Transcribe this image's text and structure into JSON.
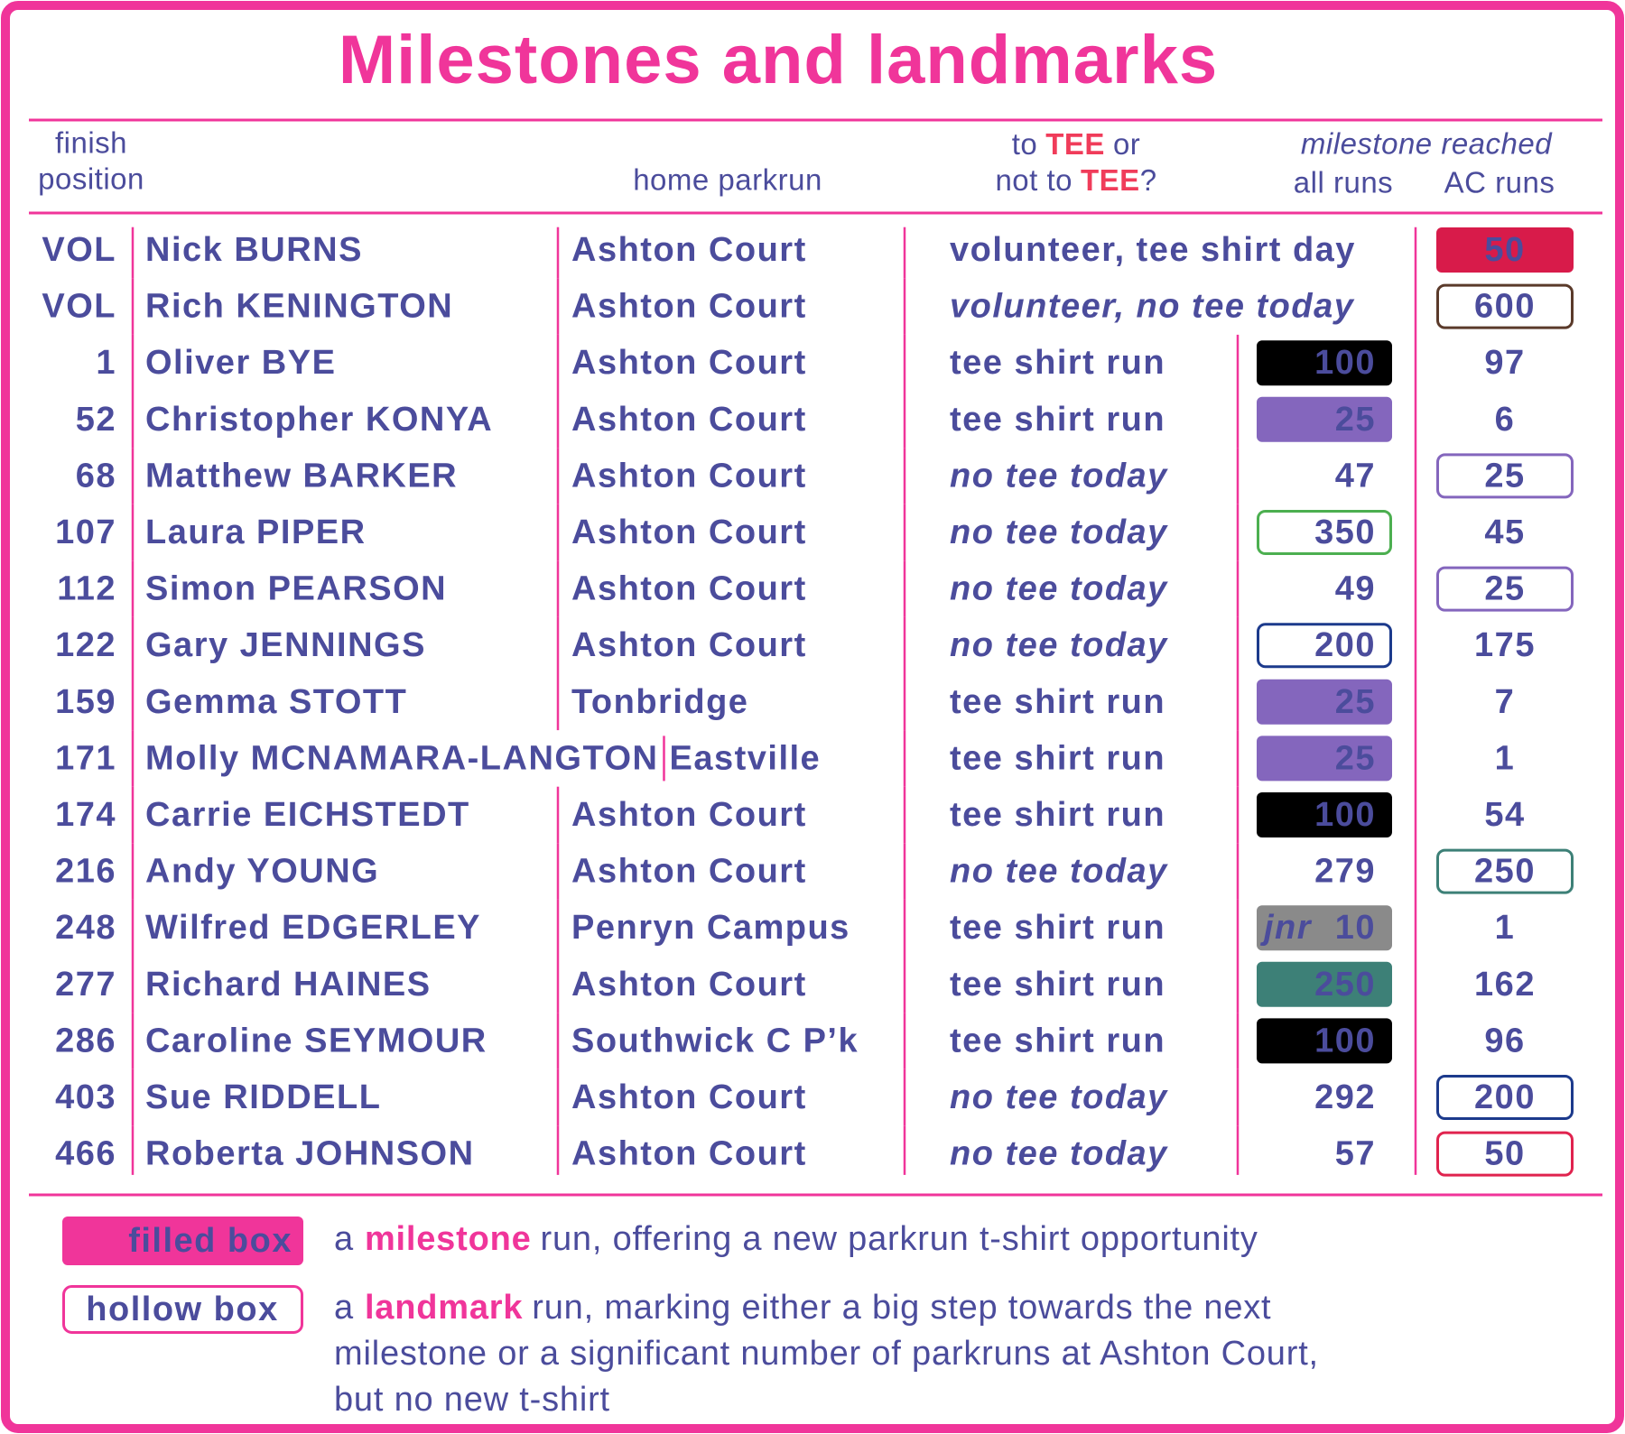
{
  "title": "Milestones and landmarks",
  "header": {
    "finish_position": [
      "finish",
      "position"
    ],
    "home_parkrun": "home parkrun",
    "tee_question": [
      [
        "to",
        "TEE",
        "or"
      ],
      [
        "not to",
        "TEE",
        "?"
      ]
    ],
    "milestone_reached": "milestone reached",
    "all_runs": "all runs",
    "ac_runs": "AC runs"
  },
  "rows": [
    {
      "position": "VOL",
      "position_color": "#d3123c",
      "name": "Nick BURNS",
      "home": "Ashton Court",
      "status": {
        "text": "volunteer, tee shirt day",
        "color": "#d3123c",
        "italic": false
      },
      "ac_runs": {
        "value": 50,
        "box": "filled",
        "color": "#d81b4a"
      }
    },
    {
      "position": "VOL",
      "position_color": "#d3123c",
      "name": "Rich KENINGTON",
      "home": "Ashton Court",
      "status": {
        "text": "volunteer, no tee today",
        "color": "#5a3a2a",
        "italic": true
      },
      "ac_runs": {
        "value": 600,
        "box": "hollow",
        "color": "#5a3a2a"
      }
    },
    {
      "position": 1,
      "name": "Oliver BYE",
      "home": "Ashton Court",
      "status": {
        "text": "tee shirt run",
        "color": "#000000",
        "italic": false
      },
      "all_runs": {
        "value": 100,
        "box": "filled",
        "color": "#000000"
      },
      "ac_runs": {
        "value": 97
      }
    },
    {
      "position": 52,
      "name": "Christopher KONYA",
      "home": "Ashton Court",
      "status": {
        "text": "tee shirt run",
        "color": "#8466bd",
        "italic": false
      },
      "all_runs": {
        "value": 25,
        "box": "filled",
        "color": "#8466bd"
      },
      "ac_runs": {
        "value": 6
      }
    },
    {
      "position": 68,
      "name": "Matthew BARKER",
      "home": "Ashton Court",
      "status": {
        "text": "no tee today",
        "color": "#8466bd",
        "italic": true
      },
      "all_runs": {
        "value": 47
      },
      "ac_runs": {
        "value": 25,
        "box": "hollow",
        "color": "#8466bd"
      }
    },
    {
      "position": 107,
      "name": "Laura PIPER",
      "home": "Ashton Court",
      "status": {
        "text": "no tee today",
        "color": "#4caf50",
        "italic": true
      },
      "all_runs": {
        "value": 350,
        "box": "hollow",
        "color": "#4caf50"
      },
      "ac_runs": {
        "value": 45
      }
    },
    {
      "position": 112,
      "name": "Simon PEARSON",
      "home": "Ashton Court",
      "status": {
        "text": "no tee today",
        "color": "#8466bd",
        "italic": true
      },
      "all_runs": {
        "value": 49
      },
      "ac_runs": {
        "value": 25,
        "box": "hollow",
        "color": "#8466bd"
      }
    },
    {
      "position": 122,
      "name": "Gary JENNINGS",
      "home": "Ashton Court",
      "status": {
        "text": "no tee today",
        "color": "#1c3a8c",
        "italic": true
      },
      "all_runs": {
        "value": 200,
        "box": "hollow",
        "color": "#1c3a8c"
      },
      "ac_runs": {
        "value": 175
      }
    },
    {
      "position": 159,
      "name": "Gemma STOTT",
      "home": "Tonbridge",
      "status": {
        "text": "tee shirt run",
        "color": "#8466bd",
        "italic": false
      },
      "all_runs": {
        "value": 25,
        "box": "filled",
        "color": "#8466bd"
      },
      "ac_runs": {
        "value": 7
      }
    },
    {
      "position": 171,
      "name": "Molly MCNAMARA-LANGTON",
      "home": "Eastville",
      "status": {
        "text": "tee shirt run",
        "color": "#8466bd",
        "italic": false
      },
      "all_runs": {
        "value": 25,
        "box": "filled",
        "color": "#8466bd"
      },
      "ac_runs": {
        "value": 1
      }
    },
    {
      "position": 174,
      "name": "Carrie EICHSTEDT",
      "home": "Ashton Court",
      "status": {
        "text": "tee shirt run",
        "color": "#000000",
        "italic": false
      },
      "all_runs": {
        "value": 100,
        "box": "filled",
        "color": "#000000"
      },
      "ac_runs": {
        "value": 54
      }
    },
    {
      "position": 216,
      "name": "Andy YOUNG",
      "home": "Ashton Court",
      "status": {
        "text": "no tee today",
        "color": "#3d8077",
        "italic": true
      },
      "all_runs": {
        "value": 279
      },
      "ac_runs": {
        "value": 250,
        "box": "hollow",
        "color": "#3d8077"
      }
    },
    {
      "position": 248,
      "name": "Wilfred EDGERLEY",
      "home": "Penryn Campus",
      "status": {
        "text": "tee shirt run",
        "color": "#8a8a8a",
        "italic": false
      },
      "all_runs": {
        "prefix": "jnr",
        "value": 10,
        "box": "filled",
        "color": "#8a8a8a"
      },
      "ac_runs": {
        "value": 1
      }
    },
    {
      "position": 277,
      "name": "Richard HAINES",
      "home": "Ashton Court",
      "status": {
        "text": "tee shirt run",
        "color": "#3d8077",
        "italic": false
      },
      "all_runs": {
        "value": 250,
        "box": "filled",
        "color": "#3d8077"
      },
      "ac_runs": {
        "value": 162
      }
    },
    {
      "position": 286,
      "name": "Caroline SEYMOUR",
      "home": "Southwick C P’k",
      "status": {
        "text": "tee shirt run",
        "color": "#000000",
        "italic": false
      },
      "all_runs": {
        "value": 100,
        "box": "filled",
        "color": "#000000"
      },
      "ac_runs": {
        "value": 96
      }
    },
    {
      "position": 403,
      "name": "Sue RIDDELL",
      "home": "Ashton Court",
      "status": {
        "text": "no tee today",
        "color": "#1c3a8c",
        "italic": true
      },
      "all_runs": {
        "value": 292
      },
      "ac_runs": {
        "value": 200,
        "box": "hollow",
        "color": "#1c3a8c"
      }
    },
    {
      "position": 466,
      "name": "Roberta JOHNSON",
      "home": "Ashton Court",
      "status": {
        "text": "no tee today",
        "color": "#e0234e",
        "italic": true
      },
      "all_runs": {
        "value": 57
      },
      "ac_runs": {
        "value": 50,
        "box": "hollow",
        "color": "#e0234e"
      }
    }
  ],
  "legend": [
    {
      "box": "filled",
      "label": "filled box",
      "lead": "a",
      "keyword": "milestone",
      "lines": [
        "run, offering a new parkrun t-shirt opportunity"
      ]
    },
    {
      "box": "hollow",
      "label": "hollow box",
      "lead": "a",
      "keyword": "landmark",
      "lines": [
        "run, marking either a big step towards the next",
        "milestone or a significant number of parkruns at Ashton Court,",
        "but no new t-shirt"
      ]
    }
  ]
}
